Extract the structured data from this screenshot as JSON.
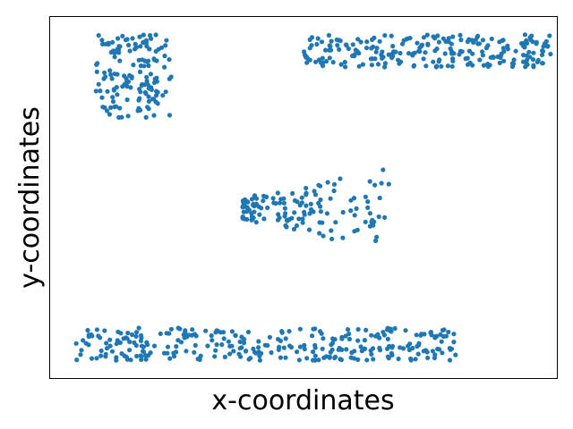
{
  "chart_data": {
    "type": "scatter",
    "title": "",
    "xlabel": "x-coordinates",
    "ylabel": "y-coordinates",
    "xlim": [
      0,
      100
    ],
    "ylim": [
      0,
      100
    ],
    "xticks": [],
    "yticks": [],
    "grid": false,
    "legend": "none",
    "marker_color": "#1f77b4",
    "clusters": [
      {
        "shape": "rect",
        "x": [
          9,
          24
        ],
        "y": [
          72,
          95
        ],
        "n": 150
      },
      {
        "shape": "rect",
        "x": [
          50,
          99
        ],
        "y": [
          86,
          95
        ],
        "n": 230
      },
      {
        "shape": "fan",
        "x": [
          38,
          67
        ],
        "y": [
          40,
          58
        ],
        "n": 140
      },
      {
        "shape": "rect",
        "x": [
          5,
          80
        ],
        "y": [
          5,
          14
        ],
        "n": 300
      }
    ]
  }
}
